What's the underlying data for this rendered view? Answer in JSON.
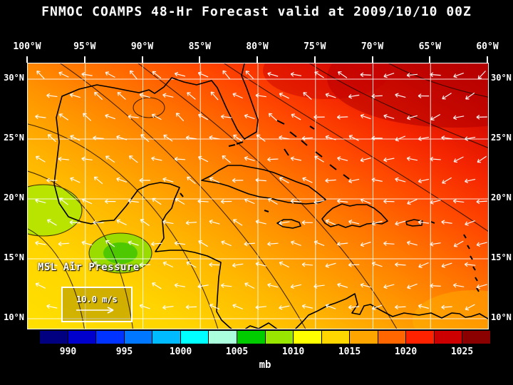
{
  "title": "FNMOC COAMPS 48-Hr Forecast valid at 2009/10/10 00Z",
  "axes": {
    "lon": [
      "100°W",
      "95°W",
      "90°W",
      "85°W",
      "80°W",
      "75°W",
      "70°W",
      "65°W",
      "60°W"
    ],
    "lat": [
      "30°N",
      "25°N",
      "20°N",
      "15°N",
      "10°N"
    ]
  },
  "map_overlays": {
    "field_label": "MSL Air Pressure",
    "wind_scale_label": "10.0 m/s"
  },
  "colorbar": {
    "unit": "mb",
    "tick_labels": [
      "990",
      "995",
      "1000",
      "1005",
      "1010",
      "1015",
      "1020",
      "1025"
    ],
    "tick_boundaries": [
      1,
      3,
      5,
      7,
      9,
      11,
      13,
      15
    ],
    "segments": 16,
    "colors": [
      "#000080",
      "#0000CD",
      "#0033FF",
      "#0077FF",
      "#00BBFF",
      "#00FFFF",
      "#AAFFDD",
      "#00CC00",
      "#99E600",
      "#FFFF00",
      "#FFD700",
      "#FFA500",
      "#FF6600",
      "#FF2200",
      "#CC0000",
      "#8B0000"
    ]
  },
  "field_palette": {
    "low": "#FFE000",
    "mid": "#FF9500",
    "high": "#B80000",
    "green_patch": "#9ADC00",
    "green_core": "#4EC800"
  },
  "style": {
    "arrow_color": "#FFFFFF",
    "coast_color": "#000000",
    "grid_color": "#FFFFFF"
  }
}
